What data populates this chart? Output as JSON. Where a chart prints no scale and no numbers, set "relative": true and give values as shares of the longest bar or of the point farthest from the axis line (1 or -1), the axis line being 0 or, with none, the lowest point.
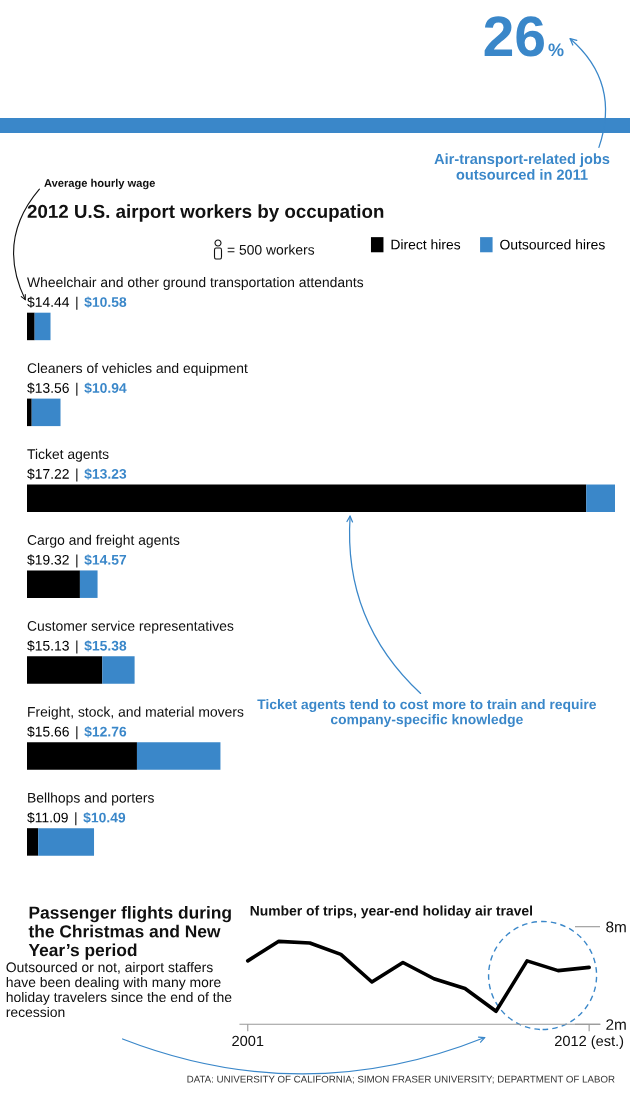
{
  "chart_data": [
    {
      "type": "other",
      "annotations": [
        "26",
        "%",
        "Air-transport-related jobs outsourced in 2011"
      ]
    },
    {
      "type": "bar",
      "orientation": "horizontal",
      "stacked": true,
      "relative": true,
      "title": "2012 U.S. airport workers by occupation",
      "categories": [
        "Wheelchair and other ground transportation attendants",
        "Cleaners of vehicles and equipment",
        "Ticket agents",
        "Cargo and freight agents",
        "Customer service representatives",
        "Freight, stock, and material movers",
        "Bellhops and porters"
      ],
      "series": [
        {
          "name": "Direct hires",
          "color": "#000000",
          "values": [
            0.013,
            0.008,
            0.951,
            0.09,
            0.128,
            0.187,
            0.019
          ]
        },
        {
          "name": "Outsourced hires",
          "color": "#3a87c9",
          "values": [
            0.027,
            0.049,
            0.049,
            0.03,
            0.055,
            0.142,
            0.095
          ]
        }
      ],
      "legend": "top right",
      "annotations": [
        "$14.44",
        "|",
        "$10.58",
        "$13.56",
        "|",
        "$10.94",
        "$17.22",
        "|",
        "$13.23",
        "$19.32",
        "|",
        "$14.57",
        "$15.13",
        "|",
        "$15.38",
        "$15.66",
        "|",
        "$12.76",
        "$11.09",
        "|",
        "$10.49",
        "Average hourly wage",
        "= 500 workers",
        "Ticket agents tend to cost more to train and require company-specific knowledge"
      ]
    },
    {
      "type": "line",
      "title": "Passenger flights during the Christmas and New Year’s period",
      "subtitle": "Outsourced or not, airport staffers have been dealing with many more holiday travelers since the end of the recession",
      "ylabel": "Number of trips, year-end holiday air travel",
      "x": [
        2001,
        2002,
        2003,
        2004,
        2005,
        2006,
        2007,
        2008,
        2009,
        2010,
        2011,
        2012
      ],
      "series": [
        {
          "color": "#000000",
          "values": [
            5.9,
            7.1,
            7.0,
            6.3,
            4.6,
            5.8,
            4.8,
            4.2,
            2.8,
            5.9,
            5.3,
            5.5
          ]
        }
      ],
      "xlim": [
        2000.75,
        2012.35
      ],
      "ylim": [
        2,
        8
      ],
      "xticks": [
        2001,
        {
          "value": 2012,
          "label": "2012 (est.)"
        }
      ],
      "yticks": [
        {
          "value": 2,
          "label": "2m"
        },
        {
          "value": 8,
          "label": "8m"
        }
      ],
      "annotations": [
        "DATA: UNIVERSITY OF CALIFORNIA; SIMON FRASER UNIVERSITY; DEPARTMENT OF LABOR"
      ]
    }
  ]
}
